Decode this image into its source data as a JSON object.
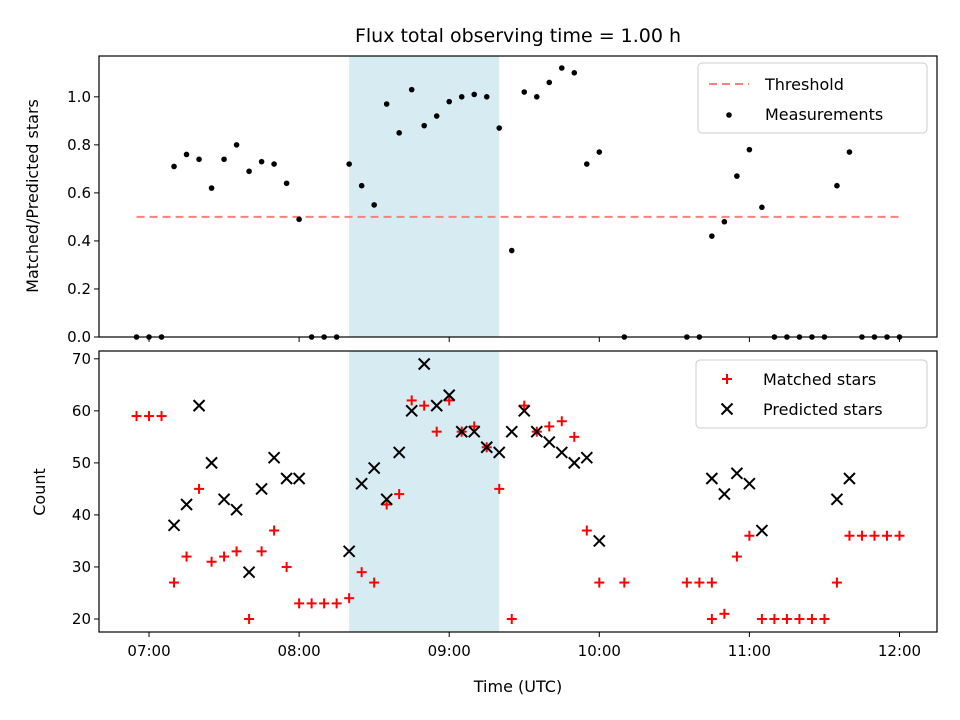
{
  "chart_data": [
    {
      "type": "scatter",
      "title": "Flux total observing time = 1.00 h",
      "ylabel": "Matched/Predicted stars",
      "xlabel": "",
      "xlim": [
        "06:40",
        "12:15"
      ],
      "ylim": [
        0,
        1.17
      ],
      "yticks": [
        "0.0",
        "0.2",
        "0.4",
        "0.6",
        "0.8",
        "1.0"
      ],
      "shaded_span": [
        "08:20",
        "09:20"
      ],
      "legend": "top-right",
      "threshold": {
        "name": "Threshold",
        "y": 0.5,
        "x": [
          "06:55",
          "12:00"
        ],
        "color": "#ff7f7f"
      },
      "series": [
        {
          "name": "Measurements",
          "color": "#000000",
          "points": [
            [
              "06:55",
              0.0
            ],
            [
              "07:00",
              0.0
            ],
            [
              "07:05",
              0.0
            ],
            [
              "07:10",
              0.71
            ],
            [
              "07:15",
              0.76
            ],
            [
              "07:20",
              0.74
            ],
            [
              "07:25",
              0.62
            ],
            [
              "07:30",
              0.74
            ],
            [
              "07:35",
              0.8
            ],
            [
              "07:40",
              0.69
            ],
            [
              "07:45",
              0.73
            ],
            [
              "07:50",
              0.72
            ],
            [
              "07:55",
              0.64
            ],
            [
              "08:00",
              0.49
            ],
            [
              "08:05",
              0.0
            ],
            [
              "08:10",
              0.0
            ],
            [
              "08:15",
              0.0
            ],
            [
              "08:20",
              0.72
            ],
            [
              "08:25",
              0.63
            ],
            [
              "08:30",
              0.55
            ],
            [
              "08:35",
              0.97
            ],
            [
              "08:40",
              0.85
            ],
            [
              "08:45",
              1.03
            ],
            [
              "08:50",
              0.88
            ],
            [
              "08:55",
              0.92
            ],
            [
              "09:00",
              0.98
            ],
            [
              "09:05",
              1.0
            ],
            [
              "09:10",
              1.01
            ],
            [
              "09:15",
              1.0
            ],
            [
              "09:20",
              0.87
            ],
            [
              "09:25",
              0.36
            ],
            [
              "09:30",
              1.02
            ],
            [
              "09:35",
              1.0
            ],
            [
              "09:40",
              1.06
            ],
            [
              "09:45",
              1.12
            ],
            [
              "09:50",
              1.1
            ],
            [
              "09:55",
              0.72
            ],
            [
              "10:00",
              0.77
            ],
            [
              "10:10",
              0.0
            ],
            [
              "10:35",
              0.0
            ],
            [
              "10:40",
              0.0
            ],
            [
              "10:45",
              0.42
            ],
            [
              "10:50",
              0.48
            ],
            [
              "10:55",
              0.67
            ],
            [
              "11:00",
              0.78
            ],
            [
              "11:05",
              0.54
            ],
            [
              "11:10",
              0.0
            ],
            [
              "11:15",
              0.0
            ],
            [
              "11:20",
              0.0
            ],
            [
              "11:25",
              0.0
            ],
            [
              "11:30",
              0.0
            ],
            [
              "11:35",
              0.63
            ],
            [
              "11:40",
              0.77
            ],
            [
              "11:45",
              0.0
            ],
            [
              "11:50",
              0.0
            ],
            [
              "11:55",
              0.0
            ],
            [
              "12:00",
              0.0
            ]
          ]
        }
      ]
    },
    {
      "type": "scatter",
      "title": "",
      "ylabel": "Count",
      "xlabel": "Time (UTC)",
      "xlim": [
        "06:40",
        "12:15"
      ],
      "ylim": [
        17.5,
        71.5
      ],
      "yticks": [
        "20",
        "30",
        "40",
        "50",
        "60",
        "70"
      ],
      "xticks": [
        "07:00",
        "08:00",
        "09:00",
        "10:00",
        "11:00",
        "12:00"
      ],
      "shaded_span": [
        "08:20",
        "09:20"
      ],
      "legend": "top-right",
      "series": [
        {
          "name": "Matched stars",
          "color": "#ff0000",
          "marker": "plus",
          "points": [
            [
              "06:55",
              59
            ],
            [
              "07:00",
              59
            ],
            [
              "07:05",
              59
            ],
            [
              "07:10",
              27
            ],
            [
              "07:15",
              32
            ],
            [
              "07:20",
              45
            ],
            [
              "07:25",
              31
            ],
            [
              "07:30",
              32
            ],
            [
              "07:35",
              33
            ],
            [
              "07:40",
              20
            ],
            [
              "07:45",
              33
            ],
            [
              "07:50",
              37
            ],
            [
              "07:55",
              30
            ],
            [
              "08:00",
              23
            ],
            [
              "08:05",
              23
            ],
            [
              "08:10",
              23
            ],
            [
              "08:15",
              23
            ],
            [
              "08:20",
              24
            ],
            [
              "08:25",
              29
            ],
            [
              "08:30",
              27
            ],
            [
              "08:35",
              42
            ],
            [
              "08:40",
              44
            ],
            [
              "08:45",
              62
            ],
            [
              "08:50",
              61
            ],
            [
              "08:55",
              56
            ],
            [
              "09:00",
              62
            ],
            [
              "09:05",
              56
            ],
            [
              "09:10",
              57
            ],
            [
              "09:15",
              53
            ],
            [
              "09:20",
              45
            ],
            [
              "09:25",
              20
            ],
            [
              "09:30",
              61
            ],
            [
              "09:35",
              56
            ],
            [
              "09:40",
              57
            ],
            [
              "09:45",
              58
            ],
            [
              "09:50",
              55
            ],
            [
              "09:55",
              37
            ],
            [
              "10:00",
              27
            ],
            [
              "10:10",
              27
            ],
            [
              "10:35",
              27
            ],
            [
              "10:40",
              27
            ],
            [
              "10:45",
              27
            ],
            [
              "10:45",
              20
            ],
            [
              "10:50",
              21
            ],
            [
              "10:55",
              32
            ],
            [
              "11:00",
              36
            ],
            [
              "11:05",
              20
            ],
            [
              "11:10",
              20
            ],
            [
              "11:15",
              20
            ],
            [
              "11:20",
              20
            ],
            [
              "11:25",
              20
            ],
            [
              "11:30",
              20
            ],
            [
              "11:35",
              27
            ],
            [
              "11:40",
              36
            ],
            [
              "11:45",
              36
            ],
            [
              "11:50",
              36
            ],
            [
              "11:55",
              36
            ],
            [
              "12:00",
              36
            ]
          ]
        },
        {
          "name": "Predicted stars",
          "color": "#000000",
          "marker": "x",
          "points": [
            [
              "07:10",
              38
            ],
            [
              "07:15",
              42
            ],
            [
              "07:20",
              61
            ],
            [
              "07:25",
              50
            ],
            [
              "07:30",
              43
            ],
            [
              "07:35",
              41
            ],
            [
              "07:40",
              29
            ],
            [
              "07:45",
              45
            ],
            [
              "07:50",
              51
            ],
            [
              "07:55",
              47
            ],
            [
              "08:00",
              47
            ],
            [
              "08:20",
              33
            ],
            [
              "08:25",
              46
            ],
            [
              "08:30",
              49
            ],
            [
              "08:35",
              43
            ],
            [
              "08:40",
              52
            ],
            [
              "08:45",
              60
            ],
            [
              "08:50",
              69
            ],
            [
              "08:55",
              61
            ],
            [
              "09:00",
              63
            ],
            [
              "09:05",
              56
            ],
            [
              "09:10",
              56
            ],
            [
              "09:15",
              53
            ],
            [
              "09:20",
              52
            ],
            [
              "09:25",
              56
            ],
            [
              "09:30",
              60
            ],
            [
              "09:35",
              56
            ],
            [
              "09:40",
              54
            ],
            [
              "09:45",
              52
            ],
            [
              "09:50",
              50
            ],
            [
              "09:55",
              51
            ],
            [
              "10:00",
              35
            ],
            [
              "10:45",
              47
            ],
            [
              "10:50",
              44
            ],
            [
              "10:55",
              48
            ],
            [
              "11:00",
              46
            ],
            [
              "11:05",
              37
            ],
            [
              "11:35",
              43
            ],
            [
              "11:40",
              47
            ]
          ]
        }
      ]
    }
  ]
}
